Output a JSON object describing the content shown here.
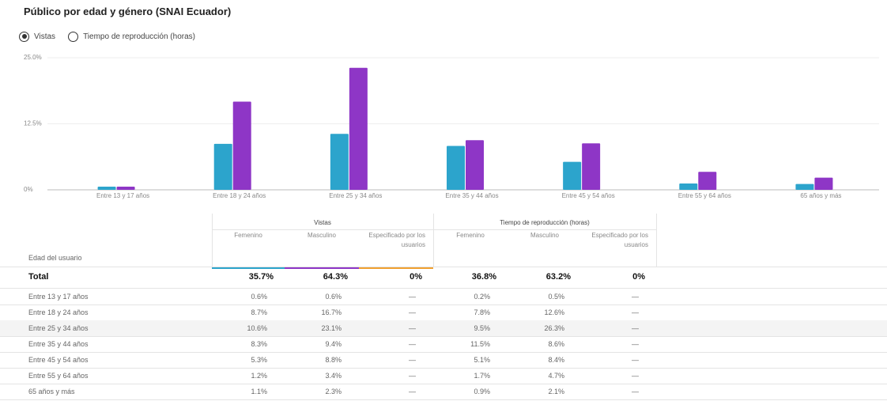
{
  "title": "Público por edad y género (SNAI Ecuador)",
  "metric_options": [
    "Vistas",
    "Tiempo de reproducción (horas)"
  ],
  "selected_option": 0,
  "chart_data": {
    "type": "bar",
    "categories": [
      "Entre 13 y 17 años",
      "Entre 18 y 24 años",
      "Entre 25 y 34 años",
      "Entre 35 y 44 años",
      "Entre 45 y 54 años",
      "Entre 55 y 64 años",
      "65 años y más"
    ],
    "series": [
      {
        "color": "#2ca4cc",
        "values": [
          0.6,
          8.7,
          10.6,
          8.3,
          5.3,
          1.2,
          1.1
        ]
      },
      {
        "color": "#8e36c6",
        "values": [
          0.6,
          16.7,
          23.1,
          9.4,
          8.8,
          3.4,
          2.3
        ]
      }
    ],
    "ylim": [
      0,
      25
    ],
    "yticks": [
      {
        "value": 0,
        "label": "0%"
      },
      {
        "value": 12.5,
        "label": "12.5%"
      },
      {
        "value": 25,
        "label": "25.0%"
      }
    ],
    "grid": true
  },
  "table": {
    "row_header": "Edad del usuario",
    "groups": [
      "Vistas",
      "Tiempo de reproducción (horas)"
    ],
    "columns": [
      "Femenino",
      "Masculino",
      "Especificado por los usuarios",
      "Femenino",
      "Masculino",
      "Especificado por los usuarios"
    ],
    "total": [
      "Total",
      "35.7%",
      "64.3%",
      "0%",
      "36.8%",
      "63.2%",
      "0%"
    ],
    "rows": [
      [
        "Entre 13 y 17 años",
        "0.6%",
        "0.6%",
        "—",
        "0.2%",
        "0.5%",
        "—"
      ],
      [
        "Entre 18 y 24 años",
        "8.7%",
        "16.7%",
        "—",
        "7.8%",
        "12.6%",
        "—"
      ],
      [
        "Entre 25 y 34 años",
        "10.6%",
        "23.1%",
        "—",
        "9.5%",
        "26.3%",
        "—"
      ],
      [
        "Entre 35 y 44 años",
        "8.3%",
        "9.4%",
        "—",
        "11.5%",
        "8.6%",
        "—"
      ],
      [
        "Entre 45 y 54 años",
        "5.3%",
        "8.8%",
        "—",
        "5.1%",
        "8.4%",
        "—"
      ],
      [
        "Entre 55 y 64 años",
        "1.2%",
        "3.4%",
        "—",
        "1.7%",
        "4.7%",
        "—"
      ],
      [
        "65 años y más",
        "1.1%",
        "2.3%",
        "—",
        "0.9%",
        "2.1%",
        "—"
      ]
    ]
  }
}
